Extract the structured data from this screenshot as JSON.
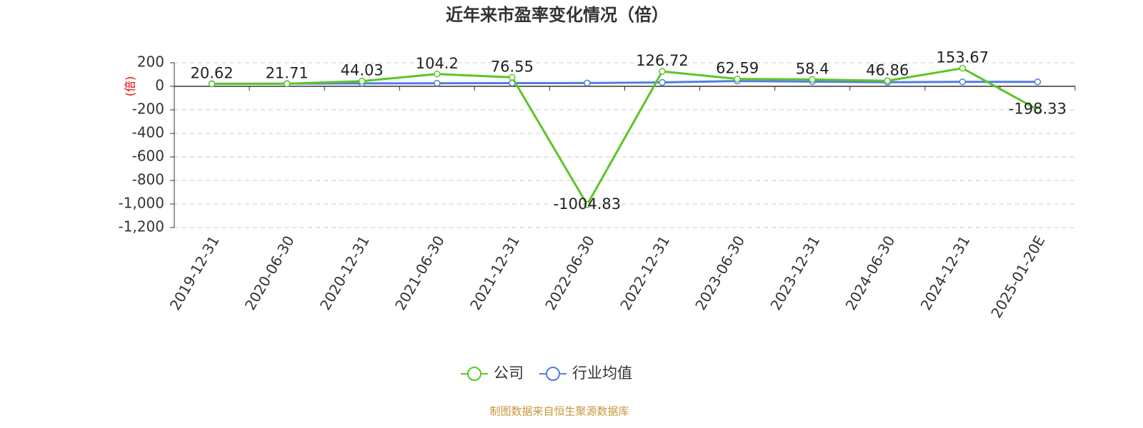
{
  "chart_data": {
    "type": "line",
    "title": "近年来市盈率变化情况（倍）",
    "y_label": "(倍)",
    "categories": [
      "2019-12-31",
      "2020-06-30",
      "2020-12-31",
      "2021-06-30",
      "2021-12-31",
      "2022-06-30",
      "2022-12-31",
      "2023-06-30",
      "2023-12-31",
      "2024-06-30",
      "2024-12-31",
      "2025-01-20E"
    ],
    "series": [
      {
        "name": "公司",
        "color": "#5cc526",
        "values": [
          20.62,
          21.71,
          44.03,
          104.2,
          76.55,
          -1004.83,
          126.72,
          62.59,
          58.4,
          46.86,
          153.67,
          -198.33
        ],
        "show_labels": true
      },
      {
        "name": "行业均值",
        "color": "#4f7fe0",
        "values": [
          22,
          23,
          25,
          26,
          27,
          28,
          33,
          45,
          40,
          35,
          38,
          38
        ],
        "show_labels": false
      }
    ],
    "ylim": [
      -1200,
      200
    ],
    "yticks": [
      {
        "value": -1200,
        "label": "-1,200"
      },
      {
        "value": -1000,
        "label": "-1,000"
      },
      -800,
      -600,
      -400,
      -200,
      0,
      200
    ],
    "grid": true,
    "legend": "bottom",
    "source": "制图数据来自恒生聚源数据库"
  }
}
